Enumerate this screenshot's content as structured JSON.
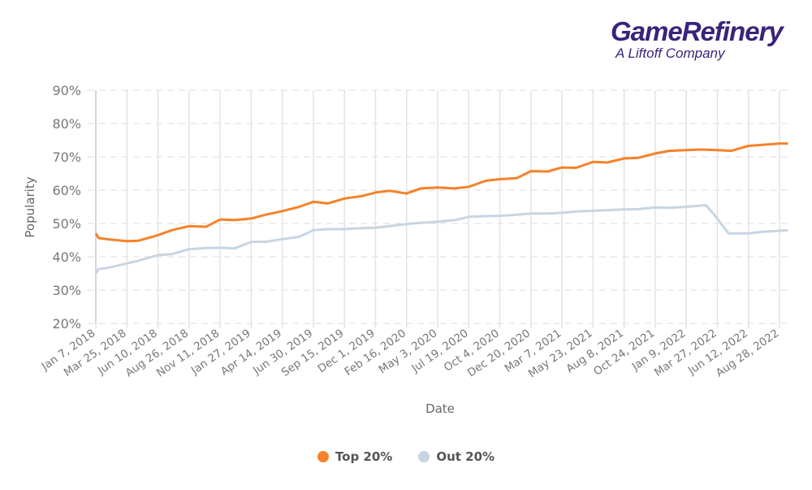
{
  "logo": {
    "brand": "GameRefinery",
    "sub": "A Liftoff Company"
  },
  "chart_data": {
    "type": "line",
    "xlabel": "Date",
    "ylabel": "Popularity",
    "ylim": [
      20,
      90
    ],
    "yticks": [
      "20%",
      "30%",
      "40%",
      "50%",
      "60%",
      "70%",
      "80%",
      "90%"
    ],
    "xticks": [
      "2018-01-07",
      "2018-03-25",
      "2018-06-10",
      "2018-08-26",
      "2018-11-11",
      "2019-01-27",
      "2019-04-14",
      "2019-06-30",
      "2019-09-15",
      "2019-12-01",
      "2020-02-16",
      "2020-05-03",
      "2020-07-19",
      "2020-10-04",
      "2020-12-20",
      "2021-03-07",
      "2021-05-23",
      "2021-08-08",
      "2021-10-24",
      "2022-01-09",
      "2022-03-27",
      "2022-06-12",
      "2022-08-28"
    ],
    "xtick_labels": [
      "Jan 7, 2018",
      "Mar 25, 2018",
      "Jun 10, 2018",
      "Aug 26, 2018",
      "Nov 11, 2018",
      "Jan 27, 2019",
      "Apr 14, 2019",
      "Jun 30, 2019",
      "Sep 15, 2019",
      "Dec 1, 2019",
      "Feb 16, 2020",
      "May 3, 2020",
      "Jul 19, 2020",
      "Oct 4, 2020",
      "Dec 20, 2020",
      "Mar 7, 2021",
      "May 23, 2021",
      "Aug 8, 2021",
      "Oct 24, 2021",
      "Jan 9, 2022",
      "Mar 27, 2022",
      "Jun 12, 2022",
      "Aug 28, 2022"
    ],
    "grid": true,
    "legend_placement": "bottom",
    "series": [
      {
        "name": "Top 20%",
        "color": "#f5822a",
        "x": [
          "2018-01-07",
          "2018-01-14",
          "2018-02-11",
          "2018-03-25",
          "2018-04-22",
          "2018-06-10",
          "2018-07-15",
          "2018-08-26",
          "2018-10-07",
          "2018-11-11",
          "2018-12-16",
          "2019-01-27",
          "2019-03-03",
          "2019-04-14",
          "2019-05-26",
          "2019-06-30",
          "2019-08-04",
          "2019-09-15",
          "2019-10-27",
          "2019-12-01",
          "2020-01-05",
          "2020-02-16",
          "2020-03-22",
          "2020-05-03",
          "2020-06-14",
          "2020-07-19",
          "2020-08-30",
          "2020-10-04",
          "2020-11-15",
          "2020-12-20",
          "2021-01-31",
          "2021-03-07",
          "2021-04-11",
          "2021-05-23",
          "2021-06-27",
          "2021-08-08",
          "2021-09-12",
          "2021-10-24",
          "2021-11-28",
          "2022-01-09",
          "2022-02-13",
          "2022-03-27",
          "2022-05-01",
          "2022-06-12",
          "2022-07-17",
          "2022-08-28",
          "2022-09-18"
        ],
        "values": [
          47,
          45.6,
          45.2,
          44.7,
          44.8,
          46.5,
          48,
          49.2,
          49,
          51.2,
          51,
          51.5,
          52.6,
          53.7,
          55,
          56.5,
          56,
          57.5,
          58.2,
          59.3,
          59.8,
          59,
          60.5,
          60.8,
          60.5,
          61,
          62.8,
          63.3,
          63.6,
          65.7,
          65.6,
          66.8,
          66.7,
          68.5,
          68.3,
          69.5,
          69.7,
          71,
          71.8,
          72,
          72.2,
          72,
          71.8,
          73.3,
          73.6,
          74,
          74
        ]
      },
      {
        "name": "Out 20%",
        "color": "#c7d5e2",
        "x": [
          "2018-01-07",
          "2018-01-14",
          "2018-02-11",
          "2018-03-25",
          "2018-04-22",
          "2018-06-10",
          "2018-07-15",
          "2018-08-26",
          "2018-10-07",
          "2018-11-11",
          "2018-12-16",
          "2019-01-27",
          "2019-03-03",
          "2019-04-14",
          "2019-05-26",
          "2019-06-30",
          "2019-08-04",
          "2019-09-15",
          "2019-10-27",
          "2019-12-01",
          "2020-01-05",
          "2020-02-16",
          "2020-03-22",
          "2020-05-03",
          "2020-06-14",
          "2020-07-19",
          "2020-08-30",
          "2020-10-04",
          "2020-11-15",
          "2020-12-20",
          "2021-01-31",
          "2021-03-07",
          "2021-04-11",
          "2021-05-23",
          "2021-06-27",
          "2021-08-08",
          "2021-09-12",
          "2021-10-24",
          "2021-11-28",
          "2022-01-09",
          "2022-02-27",
          "2022-03-20",
          "2022-04-24",
          "2022-06-12",
          "2022-07-17",
          "2022-08-28",
          "2022-09-18"
        ],
        "values": [
          35,
          36.3,
          36.8,
          38,
          38.8,
          40.5,
          40.8,
          42.3,
          42.6,
          42.7,
          42.5,
          44.5,
          44.5,
          45.3,
          46,
          48,
          48.3,
          48.3,
          48.6,
          48.7,
          49.2,
          49.8,
          50.2,
          50.5,
          51,
          52,
          52.2,
          52.3,
          52.6,
          53,
          53,
          53.2,
          53.6,
          53.8,
          54,
          54.2,
          54.3,
          54.8,
          54.7,
          55,
          55.5,
          52.5,
          47,
          47,
          47.5,
          47.8,
          48
        ]
      }
    ]
  }
}
